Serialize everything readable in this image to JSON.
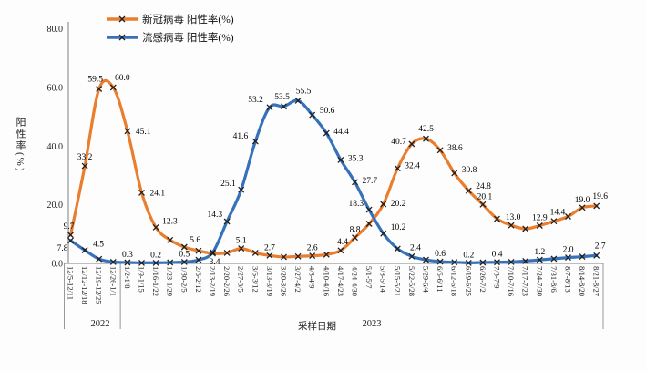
{
  "chart_data": {
    "type": "line",
    "title": "",
    "xlabel": "采样日期",
    "ylabel": "阳性率(%)",
    "ylim": [
      0,
      80
    ],
    "yticks": [
      "0.0",
      "20.0",
      "40.0",
      "60.0",
      "80.0"
    ],
    "grid": false,
    "legend_position": "top-left",
    "year_labels": [
      "2022",
      "2023"
    ],
    "year_group_split_after": "12/26-1/1",
    "categories": [
      "12/5-12/11",
      "12/12-12/18",
      "12/19-12/25",
      "12/26-1/1",
      "1/2-1/8",
      "1/9-1/15",
      "1/16-1/22",
      "1/23-1/29",
      "1/30-2/5",
      "2/6-2/12",
      "2/13-2/19",
      "2/20-2/26",
      "2/27-3/5",
      "3/6-3/12",
      "3/13-3/19",
      "3/20-3/26",
      "3/27-4/2",
      "4/3-4/9",
      "4/10-4/16",
      "4/17-4/23",
      "4/24-4/30",
      "5/1-5/7",
      "5/8-5/14",
      "5/15-5/21",
      "5/22-5/28",
      "5/29-6/4",
      "6/5-6/11",
      "6/12-6/18",
      "6/19-6/25",
      "6/26-7/2",
      "7/3-7/9",
      "7/10-7/16",
      "7/17-7/23",
      "7/24-7/30",
      "7/31-8/6",
      "8/7-8/13",
      "8/14-8/20",
      "8/21-8/27"
    ],
    "series": [
      {
        "name": "新冠病毒 阳性率(%)",
        "color": "#E97E2E",
        "marker": "x",
        "values": [
          9.7,
          33.2,
          59.5,
          60.0,
          45.1,
          24.1,
          12.3,
          8.0,
          5.6,
          4.3,
          3.4,
          3.6,
          5.1,
          3.6,
          2.7,
          2.2,
          2.4,
          2.6,
          3.0,
          4.4,
          8.8,
          13.5,
          20.2,
          32.4,
          40.7,
          42.5,
          38.6,
          30.8,
          24.8,
          20.1,
          15.2,
          13.0,
          11.8,
          12.9,
          14.4,
          16.0,
          19.0,
          19.6
        ],
        "point_labels": [
          "9.7",
          "33.2",
          "59.5",
          "60.0",
          "45.1",
          "24.1",
          "12.3",
          null,
          "5.6",
          null,
          "3.4",
          null,
          "5.1",
          null,
          "2.7",
          null,
          null,
          "2.6",
          null,
          "4.4",
          "8.8",
          null,
          "20.2",
          "32.4",
          "40.7",
          "42.5",
          "38.6",
          "30.8",
          "24.8",
          "20.1",
          null,
          "13.0",
          null,
          "12.9",
          "14.4",
          null,
          "19.0",
          "19.6"
        ]
      },
      {
        "name": "流感病毒 阳性率(%)",
        "color": "#3672B9",
        "marker": "x",
        "values": [
          7.8,
          4.5,
          1.5,
          0.5,
          0.3,
          0.2,
          0.2,
          0.3,
          0.5,
          1.2,
          3.8,
          14.3,
          25.1,
          41.6,
          53.2,
          53.5,
          55.5,
          50.6,
          44.4,
          35.3,
          27.7,
          18.3,
          10.2,
          5.0,
          2.4,
          1.2,
          0.6,
          0.4,
          0.2,
          0.3,
          0.4,
          0.5,
          0.8,
          1.2,
          1.6,
          2.0,
          2.3,
          2.7
        ],
        "point_labels": [
          "7.8",
          "4.5",
          null,
          null,
          "0.3",
          null,
          "0.2",
          null,
          "0.5",
          null,
          null,
          "14.3",
          "25.1",
          "41.6",
          "53.2",
          "53.5",
          "55.5",
          "50.6",
          "44.4",
          "35.3",
          "27.7",
          "18.3",
          "10.2",
          null,
          "2.4",
          null,
          "0.6",
          null,
          "0.2",
          null,
          "0.4",
          null,
          null,
          "1.2",
          null,
          "2.0",
          null,
          "2.7"
        ]
      }
    ]
  }
}
